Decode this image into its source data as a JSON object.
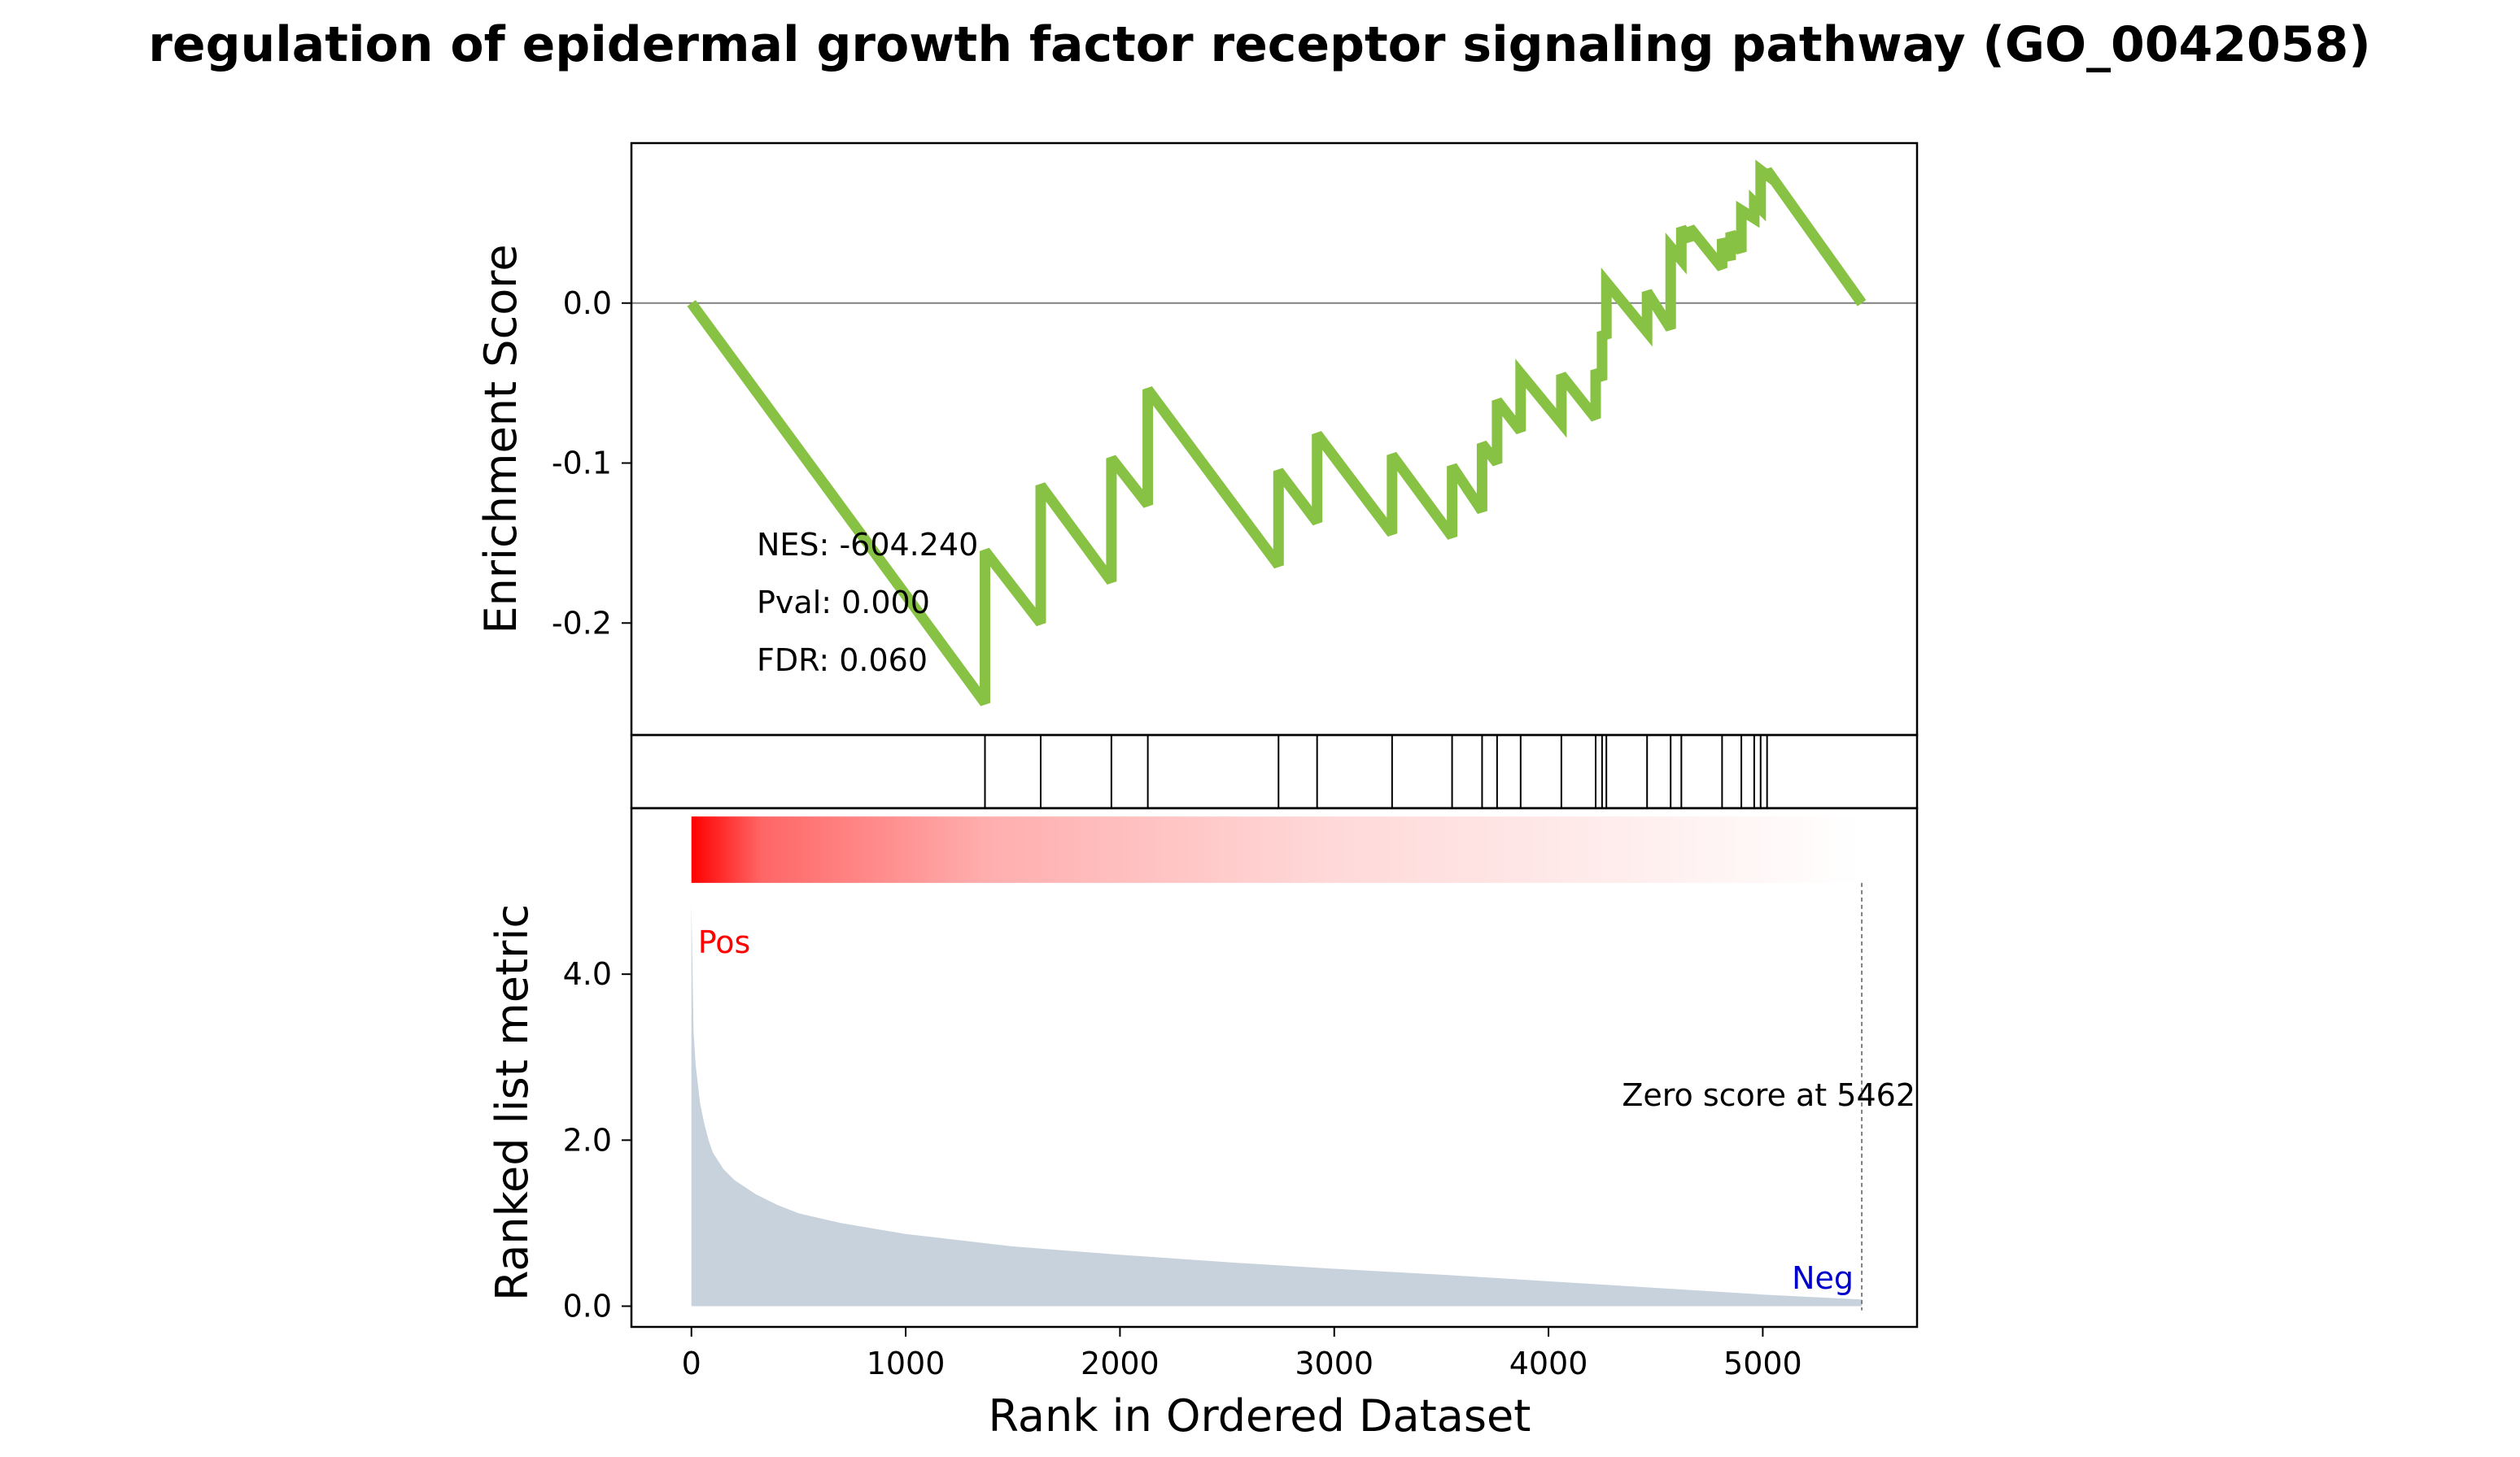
{
  "chart_data": {
    "type": "line",
    "title": "regulation of epidermal growth factor receptor signaling pathway (GO_0042058)",
    "xlabel": "Rank in Ordered Dataset",
    "xlim": [
      -280,
      5720
    ],
    "xticks": [
      0,
      1000,
      2000,
      3000,
      4000,
      5000
    ],
    "xtick_labels": [
      "0",
      "1000",
      "2000",
      "3000",
      "4000",
      "5000"
    ],
    "colors": {
      "es_line": "#88c244",
      "baseline": "#808080",
      "heat_strong": "#ff0000",
      "metric_fill": "#c8d2dc",
      "pos_label": "#ff0000",
      "neg_label": "#0000cc",
      "axes": "#000000"
    },
    "enrichment_panel": {
      "ylabel": "Enrichment Score",
      "ylim": [
        -0.27,
        0.1
      ],
      "yticks": [
        0.0,
        -0.1,
        -0.2
      ],
      "ytick_labels": [
        "0.0",
        "-0.1",
        "-0.2"
      ],
      "annotations": [
        "NES: -604.240",
        "Pval: 0.000",
        "FDR: 0.060"
      ],
      "baseline_y": 0.0,
      "series": [
        {
          "x": [
            0,
            1370,
            1370,
            1630,
            1630,
            1960,
            1960,
            2130,
            2130,
            2740,
            2740,
            2920,
            2920,
            3270,
            3270,
            3550,
            3550,
            3690,
            3690,
            3760,
            3760,
            3870,
            3870,
            4060,
            4060,
            4220,
            4220,
            4250,
            4250,
            4270,
            4270,
            4460,
            4460,
            4570,
            4570,
            4620,
            4620,
            4660,
            4660,
            4810,
            4810,
            4850,
            4850,
            4900,
            4900,
            4960,
            4960,
            4990,
            4990,
            5020,
            5020,
            5462
          ],
          "y": [
            0.0,
            -0.25,
            -0.155,
            -0.2,
            -0.114,
            -0.174,
            -0.097,
            -0.126,
            -0.054,
            -0.164,
            -0.105,
            -0.137,
            -0.082,
            -0.144,
            -0.095,
            -0.146,
            -0.102,
            -0.13,
            -0.088,
            -0.1,
            -0.061,
            -0.08,
            -0.044,
            -0.075,
            -0.045,
            -0.072,
            -0.042,
            -0.048,
            -0.018,
            -0.022,
            0.013,
            -0.018,
            0.007,
            -0.016,
            0.035,
            0.027,
            0.047,
            0.039,
            0.047,
            0.022,
            0.04,
            0.027,
            0.044,
            0.032,
            0.058,
            0.053,
            0.063,
            0.059,
            0.083,
            0.08,
            0.083,
            0.0
          ]
        }
      ]
    },
    "hits_panel": {
      "hit_positions": [
        1370,
        1630,
        1960,
        2130,
        2740,
        2920,
        3270,
        3550,
        3690,
        3760,
        3870,
        4060,
        4220,
        4250,
        4270,
        4460,
        4570,
        4620,
        4810,
        4900,
        4960,
        4990,
        5020
      ]
    },
    "ranked_panel": {
      "ylabel": "Ranked list metric",
      "ylim": [
        -0.25,
        6.0
      ],
      "yticks": [
        0.0,
        2.0,
        4.0
      ],
      "ytick_labels": [
        "0.0",
        "2.0",
        "4.0"
      ],
      "heatmap_ylim": [
        5.1,
        5.9
      ],
      "pos_label": "Pos",
      "neg_label": "Neg",
      "zero_label": "Zero score at 5462",
      "zero_x": 5462,
      "series": [
        {
          "x": [
            0,
            10,
            20,
            40,
            60,
            80,
            100,
            150,
            200,
            300,
            400,
            500,
            700,
            1000,
            1500,
            2000,
            2500,
            3000,
            3500,
            4000,
            4500,
            5000,
            5462
          ],
          "y": [
            4.85,
            3.3,
            2.9,
            2.45,
            2.2,
            2.0,
            1.85,
            1.65,
            1.52,
            1.35,
            1.22,
            1.12,
            1.0,
            0.87,
            0.72,
            0.62,
            0.53,
            0.45,
            0.38,
            0.3,
            0.22,
            0.14,
            0.08
          ]
        }
      ]
    }
  }
}
